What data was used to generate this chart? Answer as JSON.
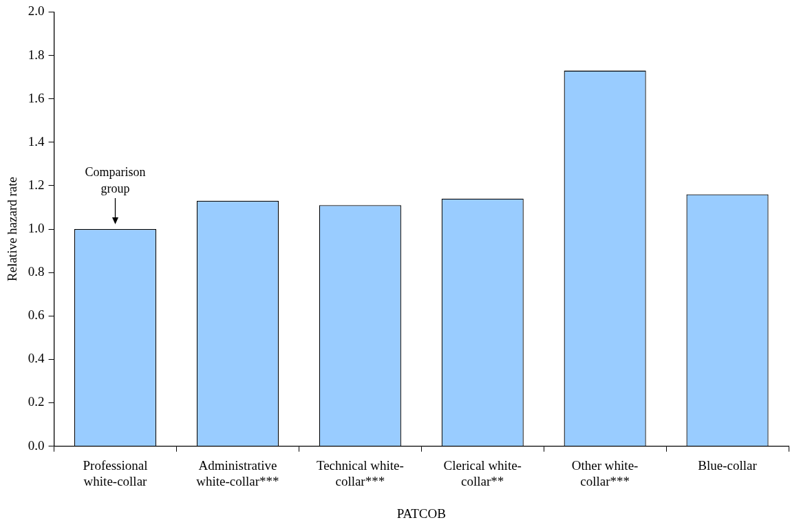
{
  "chart_data": {
    "type": "bar",
    "xlabel": "PATCOB",
    "ylabel": "Relative hazard rate",
    "categories": [
      "Professional white-collar",
      "Administrative white-collar***",
      "Technical white-collar***",
      "Clerical white-collar**",
      "Other white-collar***",
      "Blue-collar"
    ],
    "values": [
      1.0,
      1.13,
      1.11,
      1.14,
      1.73,
      1.16
    ],
    "color": "#99ccff",
    "ylim": [
      0,
      2
    ],
    "yticks": [
      {
        "value": 0,
        "label": "0.0"
      },
      0.2,
      0.4,
      0.6,
      0.8,
      {
        "value": 1,
        "label": "1.0"
      },
      1.2,
      1.4,
      1.6,
      1.8,
      {
        "value": 2,
        "label": "2.0"
      }
    ],
    "grid": false,
    "legend": false,
    "annotations": [
      {
        "text": "Comparison group",
        "x": "Professional white-collar",
        "y": 1.0
      }
    ]
  }
}
